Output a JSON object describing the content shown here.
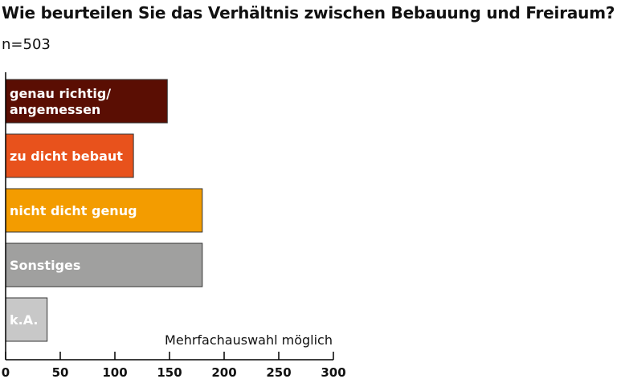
{
  "chart_data": {
    "type": "bar",
    "orientation": "horizontal",
    "title": "Wie beurteilen Sie das Verhältnis zwischen Bebauung und Freiraum?",
    "subtitle": "n=503",
    "annotation": "Mehrfachauswahl möglich",
    "xlim": [
      0,
      300
    ],
    "xticks": [
      "0",
      "50",
      "100",
      "150",
      "200",
      "250",
      "300"
    ],
    "grid": false,
    "categories": [
      {
        "label_lines": [
          "genau richtig/",
          "angemessen"
        ],
        "value": 148,
        "color": "#5a0e03"
      },
      {
        "label_lines": [
          "zu dicht bebaut"
        ],
        "value": 117,
        "color": "#e8521c"
      },
      {
        "label_lines": [
          "nicht dicht genug"
        ],
        "value": 180,
        "color": "#f39c00"
      },
      {
        "label_lines": [
          "Sonstiges"
        ],
        "value": 180,
        "color": "#a0a09f"
      },
      {
        "label_lines": [
          "k.A."
        ],
        "value": 38,
        "color": "#c8c8c8"
      }
    ]
  }
}
